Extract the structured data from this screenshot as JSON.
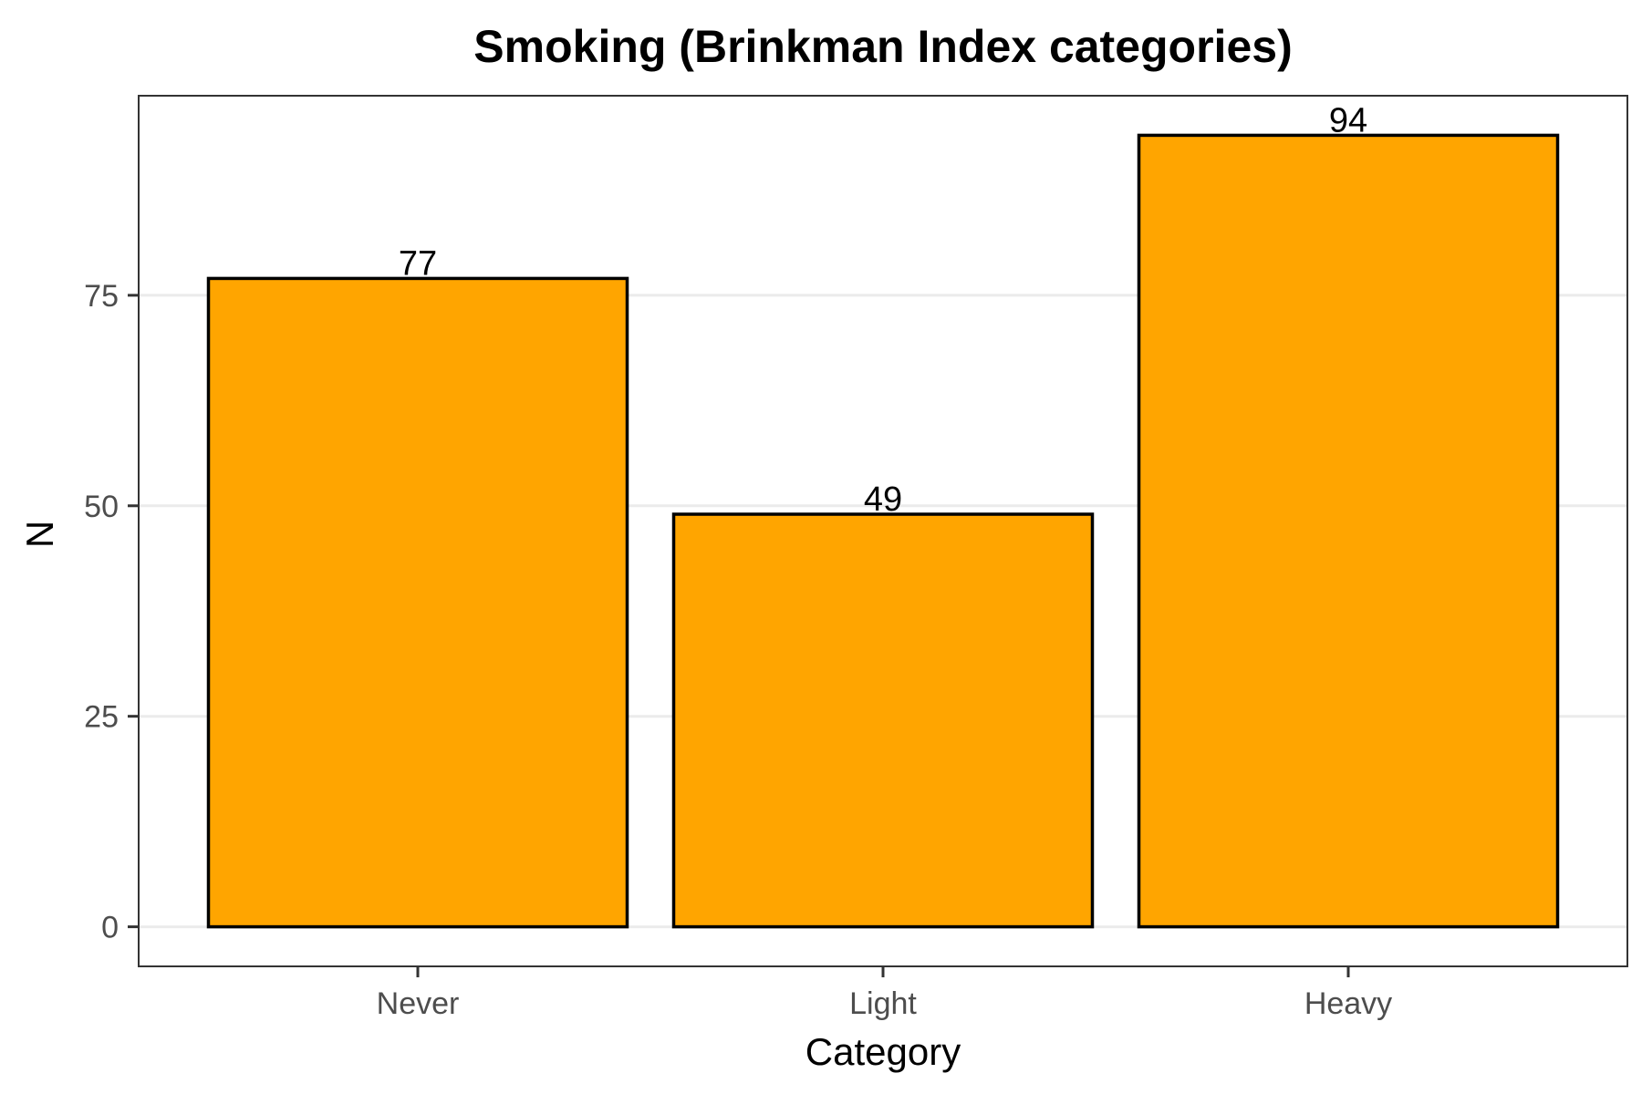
{
  "chart_data": {
    "type": "bar",
    "title": "Smoking (Brinkman Index categories)",
    "xlabel": "Category",
    "ylabel": "N",
    "categories": [
      "Never",
      "Light",
      "Heavy"
    ],
    "values": [
      77,
      49,
      94
    ],
    "data_labels": [
      "77",
      "49",
      "94"
    ],
    "yticks": [
      0,
      25,
      50,
      75
    ],
    "ytick_labels": [
      "0",
      "25",
      "50",
      "75"
    ],
    "ylim": [
      -4.7,
      98.7
    ],
    "grid": true,
    "legend": "none",
    "colors": {
      "bar_fill": "#FFA500",
      "bar_outline": "#000000",
      "grid": "#EBEBEB",
      "panel_border": "#333333",
      "tick_text": "#4D4D4D"
    }
  }
}
